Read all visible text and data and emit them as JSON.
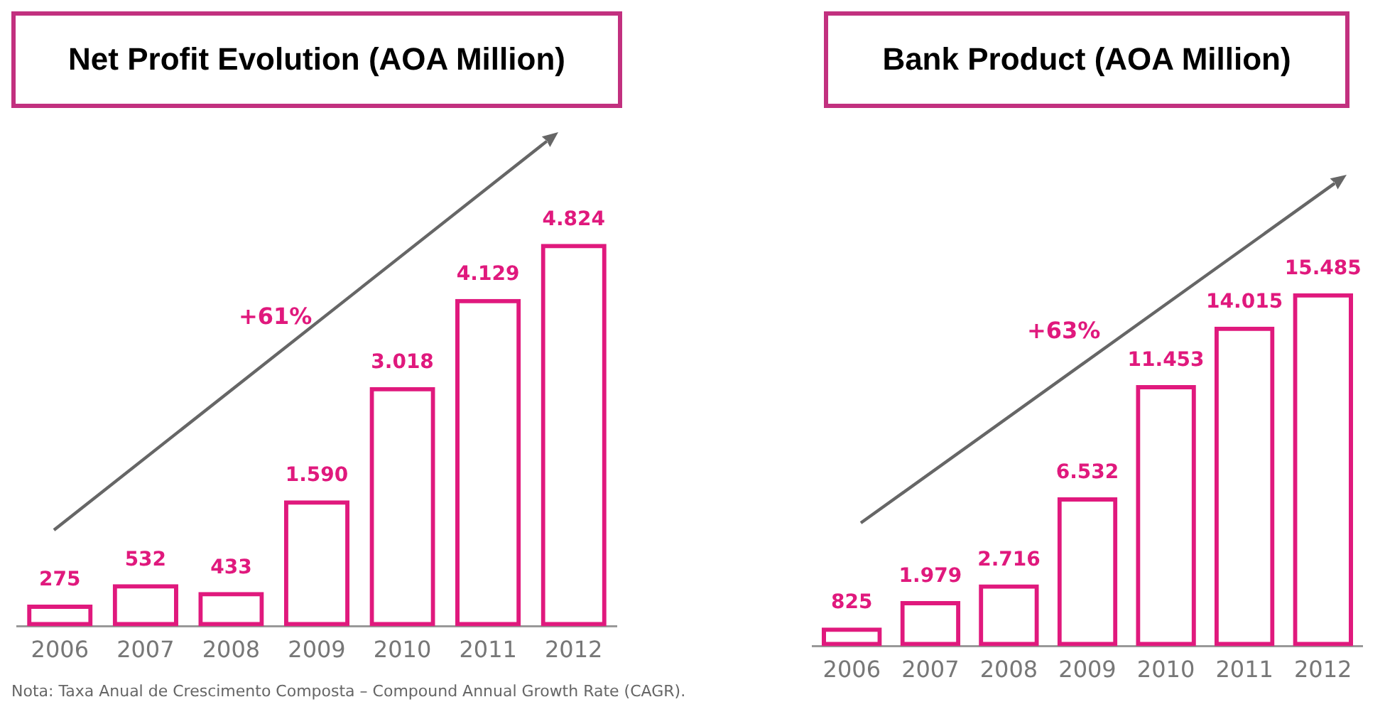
{
  "chart_data": [
    {
      "type": "bar",
      "title": "Net Profit Evolution (AOA Million)",
      "categories": [
        "2006",
        "2007",
        "2008",
        "2009",
        "2010",
        "2011",
        "2012"
      ],
      "series": [
        {
          "color": "#e0197d",
          "values": [
            275,
            532,
            433,
            1590,
            3018,
            4129,
            4824
          ],
          "value_labels": [
            "275",
            "532",
            "433",
            "1.590",
            "3.018",
            "4.129",
            "4.824"
          ]
        }
      ],
      "annotations": [
        "+61%",
        "Nota: Taxa Anual de Crescimento Composta – Compound Annual Growth Rate (CAGR)."
      ],
      "grid": false,
      "legend": false,
      "tick_labels": "x"
    },
    {
      "type": "bar",
      "title": "Bank Product (AOA Million)",
      "categories": [
        "2006",
        "2007",
        "2008",
        "2009",
        "2010",
        "2011",
        "2012"
      ],
      "series": [
        {
          "color": "#e0197d",
          "values": [
            825,
            1979,
            2716,
            6532,
            11453,
            14015,
            15485
          ],
          "value_labels": [
            "825",
            "1.979",
            "2.716",
            "6.532",
            "11.453",
            "14.015",
            "15.485"
          ]
        }
      ],
      "annotations": [
        "+63%"
      ],
      "grid": false,
      "legend": false,
      "tick_labels": "x"
    }
  ]
}
